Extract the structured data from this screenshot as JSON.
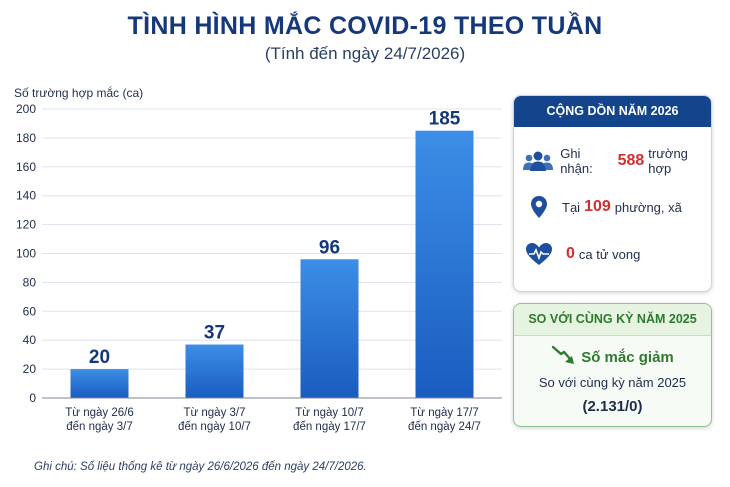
{
  "title": "TÌNH HÌNH MẮC COVID-19 THEO TUẦN",
  "subtitle": "(Tính đến ngày 24/7/2026)",
  "chart_data": {
    "type": "bar",
    "ylabel": "Số trường hợp mắc (ca)",
    "xlabel": "",
    "ylim": [
      0,
      200
    ],
    "yticks": [
      0,
      20,
      40,
      60,
      80,
      100,
      120,
      140,
      160,
      180,
      200
    ],
    "grid": true,
    "categories": [
      [
        "Từ ngày 26/6",
        "đến ngày 3/7"
      ],
      [
        "Từ ngày 3/7",
        "đến ngày 10/7"
      ],
      [
        "Từ ngày 10/7",
        "đến ngày 17/7"
      ],
      [
        "Từ ngày 17/7",
        "đến ngày 24/7"
      ]
    ],
    "values": [
      20,
      37,
      96,
      185
    ],
    "data_labels": [
      "20",
      "37",
      "96",
      "185"
    ]
  },
  "cumulative": {
    "header": "CỘNG DỒN NĂM 2026",
    "recorded_label": "Ghi nhận:",
    "recorded_value": "588",
    "recorded_unit": "trường hợp",
    "location_prefix": "Tại",
    "location_value": "109",
    "location_unit": "phường, xã",
    "deaths_value": "0",
    "deaths_unit": "ca tử vong"
  },
  "comparison": {
    "header": "SO VỚI CÙNG KỲ NĂM 2025",
    "trend": "Số mắc giảm",
    "line": "So với cùng kỳ năm 2025",
    "figure": "(2.131/0)"
  },
  "note": "Ghi chú: Số liệu thống kê từ ngày 26/6/2026 đến ngày 24/7/2026.",
  "colors": {
    "title": "#14387a",
    "bar_top": "#3c8ee6",
    "bar_bottom": "#1a5cc0",
    "highlight": "#d32f2f",
    "decrease": "#2e7a2e"
  },
  "icons": {
    "recorded": "people-group-icon",
    "location": "map-pin-icon",
    "deaths": "heartbeat-icon",
    "trend": "trend-down-icon"
  }
}
